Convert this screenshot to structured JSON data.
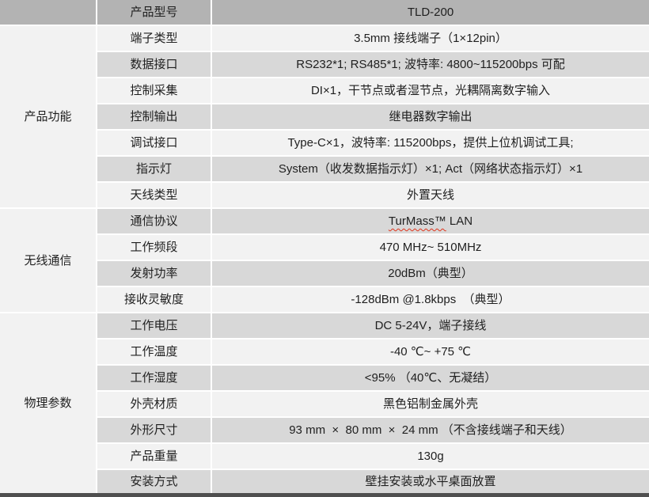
{
  "table": {
    "header": {
      "label": "产品型号",
      "value": "TLD-200"
    },
    "groups": [
      {
        "name": "产品功能",
        "rows": [
          {
            "label": "端子类型",
            "value": "3.5mm 接线端子（1×12pin）"
          },
          {
            "label": "数据接口",
            "value": "RS232*1; RS485*1; 波特率: 4800~115200bps 可配"
          },
          {
            "label": "控制采集",
            "value": "DI×1，干节点或者湿节点，光耦隔离数字输入"
          },
          {
            "label": "控制输出",
            "value": "继电器数字输出"
          },
          {
            "label": "调试接口",
            "value": "Type-C×1，波特率: 115200bps，提供上位机调试工具;"
          },
          {
            "label": "指示灯",
            "value": "System（收发数据指示灯）×1; Act（网络状态指示灯）×1"
          },
          {
            "label": "天线类型",
            "value": "外置天线"
          }
        ]
      },
      {
        "name": "无线通信",
        "rows": [
          {
            "label": "通信协议",
            "value": "TurMass™ LAN",
            "wavy_underline_text": "TurMass™"
          },
          {
            "label": "工作频段",
            "value": "470 MHz~ 510MHz"
          },
          {
            "label": "发射功率",
            "value": "20dBm（典型）"
          },
          {
            "label": "接收灵敏度",
            "value": "-128dBm @1.8kbps  （典型）"
          }
        ]
      },
      {
        "name": "物理参数",
        "rows": [
          {
            "label": "工作电压",
            "value": "DC 5-24V，端子接线"
          },
          {
            "label": "工作温度",
            "value": "-40 ℃~ +75 ℃"
          },
          {
            "label": "工作湿度",
            "value": "<95% （40℃、无凝结）"
          },
          {
            "label": "外壳材质",
            "value": "黑色铝制金属外壳"
          },
          {
            "label": "外形尺寸",
            "value": "93 mm  ×  80 mm  ×  24 mm （不含接线端子和天线）"
          },
          {
            "label": "产品重量",
            "value": "130g"
          },
          {
            "label": "安装方式",
            "value": "壁挂安装或水平桌面放置"
          }
        ]
      }
    ]
  },
  "colors": {
    "header_bg": "#b3b3b3",
    "stripe_bg": "#d8d8d8",
    "light_bg": "#f2f2f2",
    "text": "#1f1f1f",
    "grid_line": "#ffffff",
    "bottom_bar": "#4f4f4f",
    "wavy_underline": "#e0341b"
  }
}
